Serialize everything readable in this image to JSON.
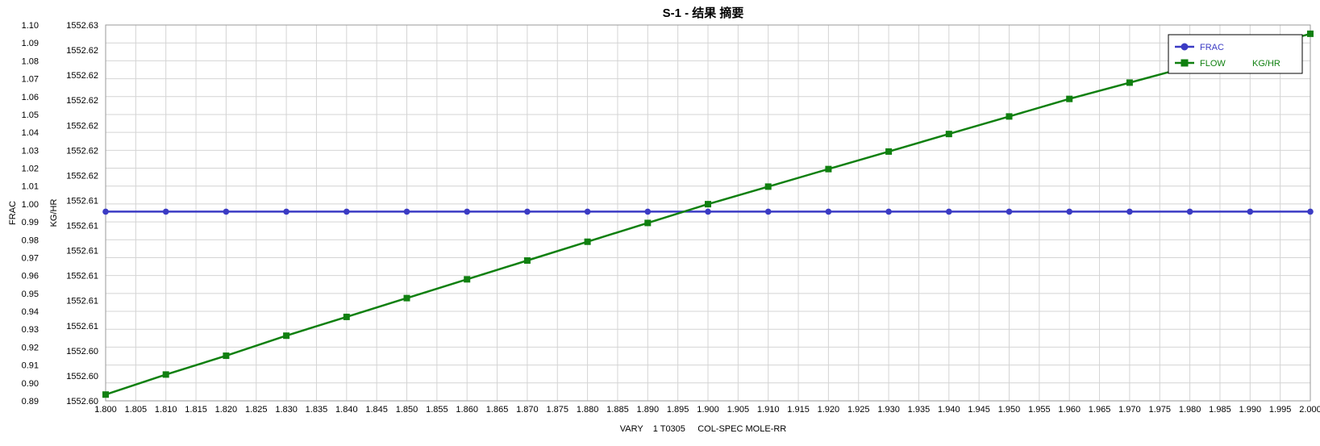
{
  "chart_data": {
    "type": "line",
    "title": "S-1 - 结果 摘要",
    "xlabel": "VARY    1 T0305     COL-SPEC MOLE-RR",
    "y1label": "FRAC",
    "y2label": "KG/HR",
    "xlim": [
      1.8,
      2.0
    ],
    "x_ticks": [
      "1.800",
      "1.805",
      "1.810",
      "1.815",
      "1.820",
      "1.825",
      "1.830",
      "1.835",
      "1.840",
      "1.845",
      "1.850",
      "1.855",
      "1.860",
      "1.865",
      "1.870",
      "1.875",
      "1.880",
      "1.885",
      "1.890",
      "1.895",
      "1.900",
      "1.905",
      "1.910",
      "1.915",
      "1.920",
      "1.925",
      "1.930",
      "1.935",
      "1.940",
      "1.945",
      "1.950",
      "1.955",
      "1.960",
      "1.965",
      "1.970",
      "1.975",
      "1.980",
      "1.985",
      "1.990",
      "1.995",
      "2.000"
    ],
    "y1lim": [
      0.89,
      1.1
    ],
    "y1_ticks": [
      "0.89",
      "0.90",
      "0.91",
      "0.92",
      "0.93",
      "0.94",
      "0.95",
      "0.96",
      "0.97",
      "0.98",
      "0.99",
      "1.00",
      "1.01",
      "1.02",
      "1.03",
      "1.04",
      "1.05",
      "1.06",
      "1.07",
      "1.08",
      "1.09",
      "1.10"
    ],
    "y2lim": [
      1552.6,
      1552.63
    ],
    "y2_ticks": [
      "1552.60",
      "1552.60",
      "1552.60",
      "1552.61",
      "1552.61",
      "1552.61",
      "1552.61",
      "1552.61",
      "1552.61",
      "1552.62",
      "1552.62",
      "1552.62",
      "1552.62",
      "1552.62",
      "1552.62",
      "1552.63"
    ],
    "grid": true,
    "legend_position": "top-right",
    "x": [
      1.8,
      1.81,
      1.82,
      1.83,
      1.84,
      1.85,
      1.86,
      1.87,
      1.88,
      1.89,
      1.9,
      1.91,
      1.92,
      1.93,
      1.94,
      1.95,
      1.96,
      1.97,
      1.98,
      1.99,
      2.0
    ],
    "series": [
      {
        "name": "FRAC",
        "unit": "",
        "axis": "left",
        "color": "#3b3bc4",
        "marker": "circle",
        "values": [
          0.9957,
          0.9957,
          0.9957,
          0.9957,
          0.9957,
          0.9957,
          0.9957,
          0.9957,
          0.9957,
          0.9957,
          0.9957,
          0.9957,
          0.9957,
          0.9957,
          0.9957,
          0.9957,
          0.9957,
          0.9957,
          0.9957,
          0.9957,
          0.9957
        ]
      },
      {
        "name": "FLOW",
        "unit": "KG/HR",
        "axis": "right",
        "color": "#108010",
        "marker": "square",
        "values": [
          1552.6005,
          1552.6021,
          1552.6036,
          1552.6052,
          1552.6067,
          1552.6082,
          1552.6097,
          1552.6112,
          1552.6127,
          1552.6142,
          1552.6157,
          1552.6171,
          1552.6185,
          1552.6199,
          1552.6213,
          1552.6227,
          1552.6241,
          1552.6254,
          1552.6267,
          1552.628,
          1552.6293
        ]
      }
    ]
  }
}
